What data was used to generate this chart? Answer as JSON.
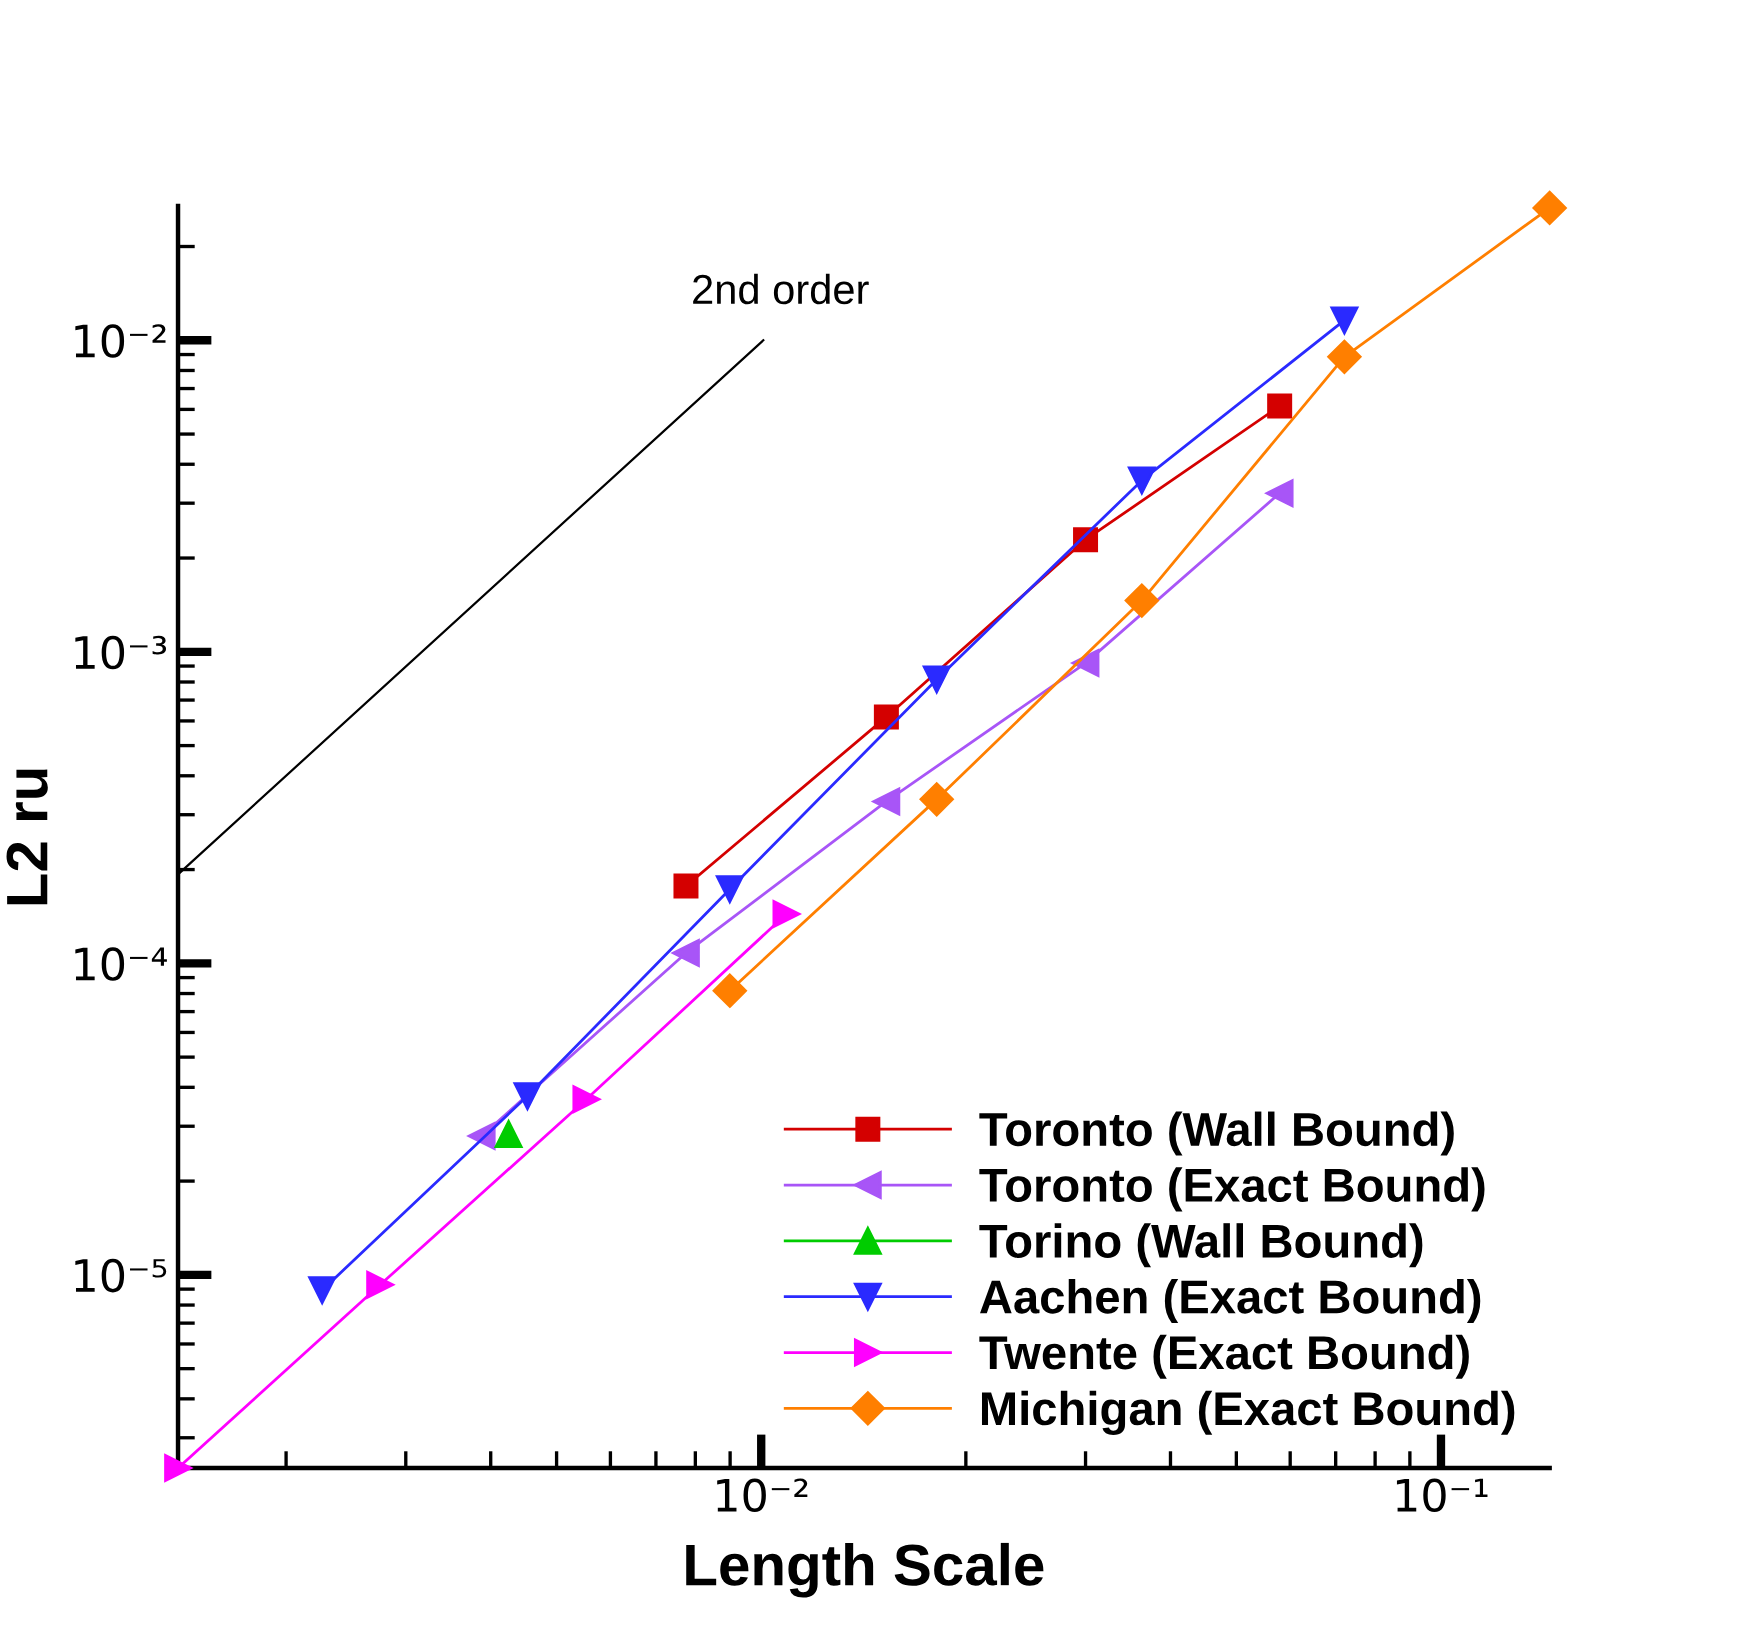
{
  "chart_data": {
    "type": "line",
    "xlabel": "Length Scale",
    "ylabel": "L2 ru",
    "log": "xy",
    "xlim": [
      0.001387,
      0.1445
    ],
    "ylim": [
      2.4e-06,
      0.027
    ],
    "xticks": [
      {
        "value": 0.01,
        "label": "10⁻²"
      },
      {
        "value": 0.1,
        "label": "10⁻¹"
      }
    ],
    "yticks": [
      {
        "value": 1e-05,
        "label": "10⁻⁵"
      },
      {
        "value": 0.0001,
        "label": "10⁻⁴"
      },
      {
        "value": 0.001,
        "label": "10⁻³"
      },
      {
        "value": 0.01,
        "label": "10⁻²"
      }
    ],
    "grid": false,
    "legend": "bottom right",
    "annotations": [
      {
        "text": "2nd order",
        "x": 0.01007,
        "y": 0.01
      }
    ],
    "series": [
      {
        "name": "Toronto (Wall Bound)",
        "color": "#d40000",
        "marker": "square",
        "x": [
          0.00775,
          0.01528,
          0.03,
          0.0579
        ],
        "values": [
          0.000177,
          0.000618,
          0.00229,
          0.00615
        ]
      },
      {
        "name": "Toronto (Exact Bound)",
        "color": "#a855f7",
        "marker": "triangle-left",
        "x": [
          0.00388,
          0.00775,
          0.01528,
          0.03,
          0.0579
        ],
        "values": [
          2.79e-05,
          0.000108,
          0.000331,
          0.00092,
          0.00323
        ]
      },
      {
        "name": "Torino (Wall Bound)",
        "color": "#00cc00",
        "marker": "triangle",
        "x": [
          0.00425
        ],
        "values": [
          2.83e-05
        ]
      },
      {
        "name": "Aachen (Exact Bound)",
        "color": "#2a2aff",
        "marker": "triangle-down",
        "x": [
          0.00226,
          0.00453,
          0.00899,
          0.01812,
          0.0363,
          0.0721
        ],
        "values": [
          8.93e-06,
          3.75e-05,
          0.000173,
          0.000815,
          0.00355,
          0.01159
        ]
      },
      {
        "name": "Twente (Exact Bound)",
        "color": "#ff00ff",
        "marker": "triangle-right",
        "x": [
          0.001387,
          0.00275,
          0.00553,
          0.01089
        ],
        "values": [
          2.4e-06,
          9.29e-06,
          3.66e-05,
          0.000144
        ]
      },
      {
        "name": "Michigan (Exact Bound)",
        "color": "#ff7f00",
        "marker": "diamond",
        "x": [
          0.00899,
          0.01812,
          0.0363,
          0.0721,
          0.1445
        ],
        "values": [
          8.17e-05,
          0.000336,
          0.00146,
          0.00885,
          0.0266
        ]
      },
      {
        "type": "line",
        "color": "#000000",
        "marker": "none",
        "x": [
          0.001387,
          0.01007
        ],
        "values": [
          0.000193,
          0.01
        ]
      }
    ]
  }
}
